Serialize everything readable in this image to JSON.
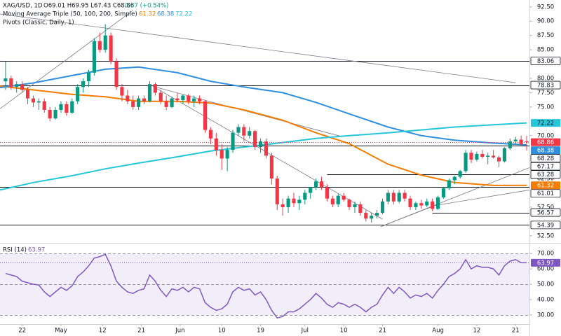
{
  "chart_data": [
    {
      "type": "candlestick",
      "title": "XAG/USD, 1D",
      "ohlc": "O69.01 H69.95 L67.43 C68.86",
      "change": "0.37 (+0.54%)",
      "ma_label": "Moving Average Triple (50, 100, 200, Simple)",
      "pivots_label": "Pivots (Classic, Daily, 1)",
      "up_color": "#089981",
      "down_color": "#f23645",
      "open": [
        79.5,
        80,
        78.5,
        79,
        78,
        76.5,
        75.8,
        76,
        74.5,
        73,
        74.5,
        75.5,
        74,
        76,
        78.5,
        79.5,
        81,
        86.5,
        85,
        87.5,
        83,
        78.5,
        77,
        76,
        75,
        76.5,
        76,
        79,
        77.5,
        76,
        75,
        76.5,
        76.2,
        77,
        76,
        76.5,
        76,
        71,
        69.5,
        67.5,
        66,
        67.5,
        70.5,
        71.5,
        70,
        70.8,
        68,
        69,
        66.5,
        62.5,
        58,
        57.5,
        59,
        58.2,
        58.8,
        60,
        61,
        62,
        61,
        59,
        58,
        59.5,
        58.8,
        57.5,
        58,
        56.5,
        55.5,
        56,
        56.5,
        58.5,
        60,
        58.5,
        60,
        59,
        57.5,
        58.2,
        57.8,
        58.5,
        57.2,
        59.2,
        60.8,
        62.2,
        62.8,
        63.8,
        67,
        65.8,
        66.8,
        66.3,
        66.5,
        66.2,
        65.5,
        67.8,
        69,
        69.3,
        69.01
      ],
      "high": [
        83,
        80.5,
        79.5,
        79.5,
        78.5,
        77,
        76.5,
        76.5,
        75,
        75,
        76,
        76,
        76.5,
        79,
        80,
        81.5,
        87,
        88,
        89.5,
        88,
        83.5,
        79,
        78,
        77,
        77,
        77,
        79.5,
        79.3,
        78,
        77,
        76.8,
        77.5,
        77.2,
        77.3,
        77,
        77,
        76.2,
        71.5,
        70.5,
        68.5,
        68,
        71,
        72,
        72,
        71.5,
        71,
        69.5,
        69.5,
        67,
        63,
        59,
        59.5,
        60,
        59.5,
        60.5,
        61,
        62.5,
        62.8,
        61.5,
        59.5,
        59.8,
        60,
        59,
        58.5,
        58.5,
        57,
        56.5,
        57,
        59,
        60.5,
        60.5,
        60.5,
        60.5,
        59.5,
        58.5,
        58.8,
        59,
        59,
        59.5,
        61,
        62.5,
        63,
        64,
        67.5,
        67.5,
        67.2,
        67.5,
        67,
        67.5,
        66.5,
        68,
        69.5,
        69.8,
        70,
        69.95
      ],
      "low": [
        78,
        78,
        77.5,
        77.5,
        75.5,
        75,
        74.5,
        74,
        72.5,
        72.8,
        74,
        73.5,
        73.8,
        75.5,
        77.5,
        78.5,
        80.5,
        84.5,
        84.5,
        82.5,
        78,
        76,
        75.5,
        74.5,
        74.5,
        75.5,
        75.8,
        77,
        75.5,
        74.5,
        74.8,
        75.8,
        75.5,
        75.5,
        75,
        75.5,
        70.5,
        68.5,
        66.5,
        64,
        63.8,
        67,
        70,
        69,
        69.5,
        67.5,
        67,
        66,
        61.5,
        57,
        56,
        56.5,
        57.5,
        57,
        58,
        59,
        60.5,
        60.5,
        58.5,
        57.5,
        57.5,
        58.5,
        57,
        56.5,
        56,
        55,
        54.8,
        55.5,
        56.3,
        58,
        58,
        58.2,
        58.5,
        57,
        57,
        57.2,
        57.5,
        56.8,
        57,
        59,
        60.5,
        61.5,
        62.5,
        63.5,
        65.2,
        65.5,
        66,
        65,
        66,
        64.5,
        65.3,
        67.5,
        68.5,
        68.3,
        67.43
      ],
      "close": [
        80,
        78.5,
        79,
        78,
        76.5,
        75.8,
        76,
        74.5,
        73,
        74.5,
        75.5,
        74,
        76,
        78.5,
        79.5,
        81,
        86.5,
        85,
        87.5,
        83,
        78.5,
        77,
        76,
        75,
        76.5,
        76,
        79,
        77.5,
        76,
        75,
        76.5,
        76.2,
        77,
        76,
        76.5,
        76,
        71,
        69.5,
        67.5,
        66,
        67.5,
        70.5,
        71.5,
        70,
        70.8,
        68,
        69,
        66.5,
        62.5,
        58,
        57.5,
        59,
        58.2,
        58.8,
        60,
        61,
        62,
        61,
        59,
        58,
        59.5,
        58.8,
        57.5,
        58,
        56.5,
        55.5,
        56,
        56.5,
        58.5,
        60,
        58.5,
        60,
        59,
        57.5,
        58.2,
        57.8,
        58.5,
        57.2,
        59.2,
        60.8,
        62.2,
        62.8,
        63.8,
        67,
        65.8,
        66.8,
        66.3,
        66.5,
        66.2,
        65.5,
        67.8,
        69,
        69.3,
        68.49,
        68.86
      ],
      "series": [
        {
          "color": "#f57c00",
          "x": [
            -1,
            5,
            12,
            18,
            24,
            31,
            37,
            43,
            50,
            56,
            62,
            69,
            75,
            81,
            88,
            94
          ],
          "values": [
            78.65,
            78,
            77.2,
            76.8,
            76,
            76,
            75.7,
            74.5,
            72.7,
            70.5,
            68.6,
            65,
            63.1,
            61.8,
            61.3,
            61.32
          ]
        },
        {
          "color": "#2f8ee0",
          "x": [
            -1,
            5,
            12,
            18,
            24,
            31,
            37,
            43,
            50,
            56,
            62,
            69,
            75,
            81,
            88,
            94
          ],
          "values": [
            78.4,
            79.2,
            80.5,
            81.6,
            82,
            81,
            79.5,
            78.5,
            77.5,
            75.8,
            73.8,
            71.5,
            70,
            69.2,
            68.7,
            68.38
          ]
        },
        {
          "color": "#26c6da",
          "x": [
            -1,
            5,
            12,
            18,
            24,
            31,
            37,
            43,
            50,
            56,
            62,
            69,
            75,
            81,
            88,
            94
          ],
          "values": [
            60.5,
            61.8,
            63,
            64.2,
            65.2,
            66.3,
            67.3,
            68,
            68.8,
            69.5,
            70,
            70.5,
            71,
            71.5,
            71.9,
            72.22
          ]
        }
      ],
      "levels": [
        {
          "value": 83.06,
          "from": -1
        },
        {
          "value": 78.83,
          "from": -1
        },
        {
          "value": 68.28,
          "from": -1
        },
        {
          "value": 67.17
        },
        {
          "value": 63.28,
          "from": 58
        },
        {
          "value": 61.01,
          "from": -1
        },
        {
          "value": 56.57,
          "from": 77
        },
        {
          "value": 54.39,
          "from": -1
        }
      ],
      "trendlines": [
        {
          "x": [
            -1,
            23
          ],
          "y": [
            74.7,
            91.9
          ]
        },
        {
          "x": [
            -1,
            92
          ],
          "y": [
            91.25,
            79.25
          ]
        },
        {
          "x": [
            26.6,
            60.4
          ],
          "y": [
            78.6,
            69.9
          ]
        },
        {
          "x": [
            26.6,
            68
          ],
          "y": [
            78.6,
            55.4
          ]
        },
        {
          "x": [
            67.7,
            94.5
          ],
          "y": [
            54.1,
            64.4
          ]
        },
        {
          "x": [
            67.7,
            77.5
          ],
          "y": [
            54.1,
            57.8
          ]
        },
        {
          "x": [
            77.5,
            94.5
          ],
          "y": [
            57.8,
            60.5
          ]
        }
      ],
      "xlim": [
        -1,
        94.5
      ],
      "ylim": [
        51.5,
        93.7
      ],
      "yticks": [
        {
          "value": 92.5,
          "label": "92.50"
        },
        {
          "value": 90,
          "label": "90.00"
        },
        {
          "value": 87.5,
          "label": "87.50"
        },
        {
          "value": 85,
          "label": "85.00"
        },
        {
          "value": 80,
          "label": "80.00"
        },
        {
          "value": 77.5,
          "label": "77.50"
        },
        {
          "value": 75,
          "label": "75.00"
        },
        {
          "value": 70,
          "label": "70.00"
        },
        {
          "value": 62.5,
          "label": "62.50"
        },
        {
          "value": 57.5,
          "label": "57.50"
        },
        {
          "value": 52.5,
          "label": "52.50"
        }
      ]
    },
    {
      "type": "line",
      "title": "RSI (14)",
      "color": "#7e57c2",
      "values": [
        57,
        56,
        55,
        52,
        51,
        50,
        49.5,
        45,
        42,
        45,
        48,
        46,
        49,
        55,
        58,
        62,
        67,
        68,
        69.5,
        62,
        52,
        48,
        45,
        44,
        46,
        47,
        56,
        52,
        46,
        42,
        47,
        46,
        48,
        45,
        48,
        47,
        38,
        35,
        33,
        34,
        37,
        45,
        48,
        46,
        47,
        43,
        45,
        40,
        33,
        28,
        29,
        32,
        32,
        34,
        37,
        40,
        44,
        41,
        37,
        35,
        38,
        37,
        35,
        37,
        35,
        32,
        35,
        37,
        43,
        48,
        44,
        48,
        45,
        41,
        43,
        42,
        44,
        41,
        46,
        50,
        55,
        57,
        60,
        66,
        60,
        62,
        61,
        61,
        60,
        56,
        62,
        65,
        66,
        64,
        63.97
      ],
      "band": [
        30,
        70
      ],
      "levels": [
        70,
        50,
        30
      ],
      "xlim": [
        -1,
        94.5
      ],
      "ylim": [
        24.5,
        76
      ],
      "yticks": [
        {
          "value": 70,
          "label": "70.00"
        },
        {
          "value": 60,
          "label": "60.00"
        },
        {
          "value": 50,
          "label": "50.00"
        },
        {
          "value": 40,
          "label": "40.00"
        },
        {
          "value": 30,
          "label": "30.00"
        }
      ],
      "xticks": [
        {
          "value": 3,
          "label": "22"
        },
        {
          "value": 10,
          "label": "May"
        },
        {
          "value": 17.5,
          "label": "12"
        },
        {
          "value": 24.5,
          "label": "21"
        },
        {
          "value": 31.5,
          "label": "Jun"
        },
        {
          "value": 39,
          "label": "10"
        },
        {
          "value": 46,
          "label": "19"
        },
        {
          "value": 54,
          "label": "Jul"
        },
        {
          "value": 61,
          "label": "10"
        },
        {
          "value": 68,
          "label": "21"
        },
        {
          "value": 78,
          "label": "Aug"
        },
        {
          "value": 85,
          "label": "12"
        },
        {
          "value": 92,
          "label": "21"
        }
      ]
    }
  ]
}
